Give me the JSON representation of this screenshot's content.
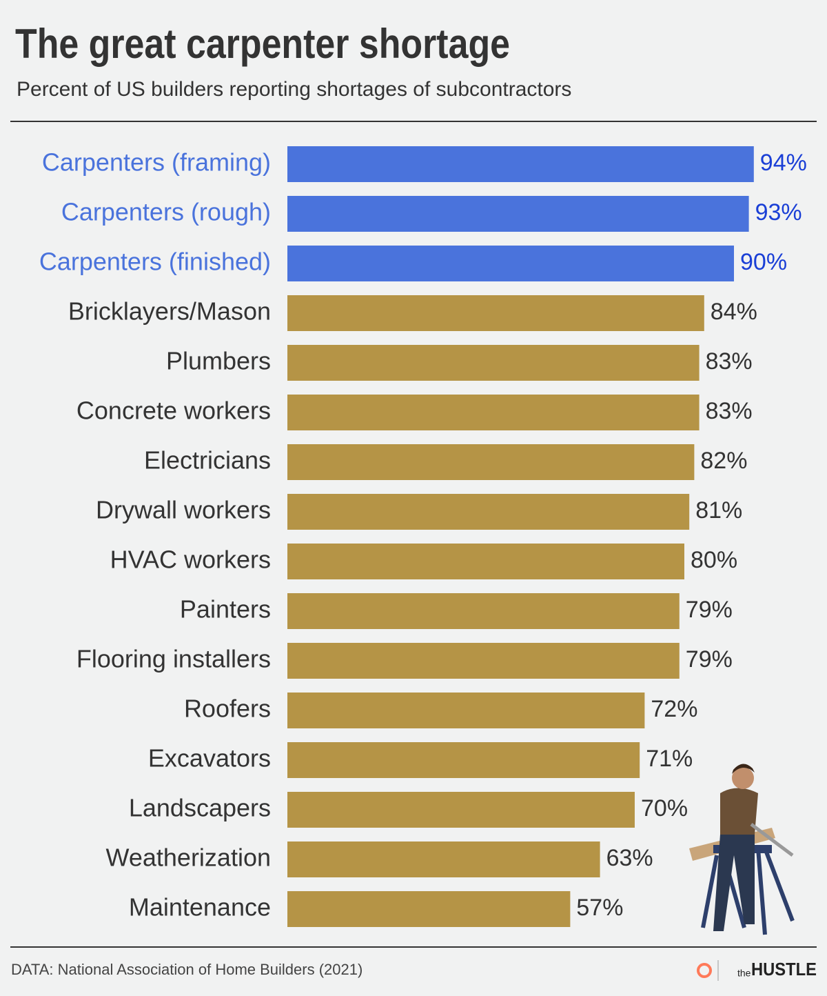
{
  "chart_data": {
    "type": "bar",
    "orientation": "horizontal",
    "title": "The great carpenter shortage",
    "subtitle": "Percent of US builders reporting shortages of subcontractors",
    "categories": [
      "Carpenters (framing)",
      "Carpenters (rough)",
      "Carpenters (finished)",
      "Bricklayers/Mason",
      "Plumbers",
      "Concrete workers",
      "Electricians",
      "Drywall workers",
      "HVAC workers",
      "Painters",
      "Flooring installers",
      "Roofers",
      "Excavators",
      "Landscapers",
      "Weatherization",
      "Maintenance"
    ],
    "values": [
      94,
      93,
      90,
      84,
      83,
      83,
      82,
      81,
      80,
      79,
      79,
      72,
      71,
      70,
      63,
      57
    ],
    "value_labels": [
      "94%",
      "93%",
      "90%",
      "84%",
      "83%",
      "83%",
      "82%",
      "81%",
      "80%",
      "79%",
      "79%",
      "72%",
      "71%",
      "70%",
      "63%",
      "57%"
    ],
    "colors": [
      "#4a73dc",
      "#4a73dc",
      "#4a73dc",
      "#b59446",
      "#b59446",
      "#b59446",
      "#b59446",
      "#b59446",
      "#b59446",
      "#b59446",
      "#b59446",
      "#b59446",
      "#b59446",
      "#b59446",
      "#b59446",
      "#b59446"
    ],
    "source": "DATA: National Association of Home Builders (2021)",
    "brand": {
      "prefix": "the",
      "name": "HUSTLE"
    }
  }
}
